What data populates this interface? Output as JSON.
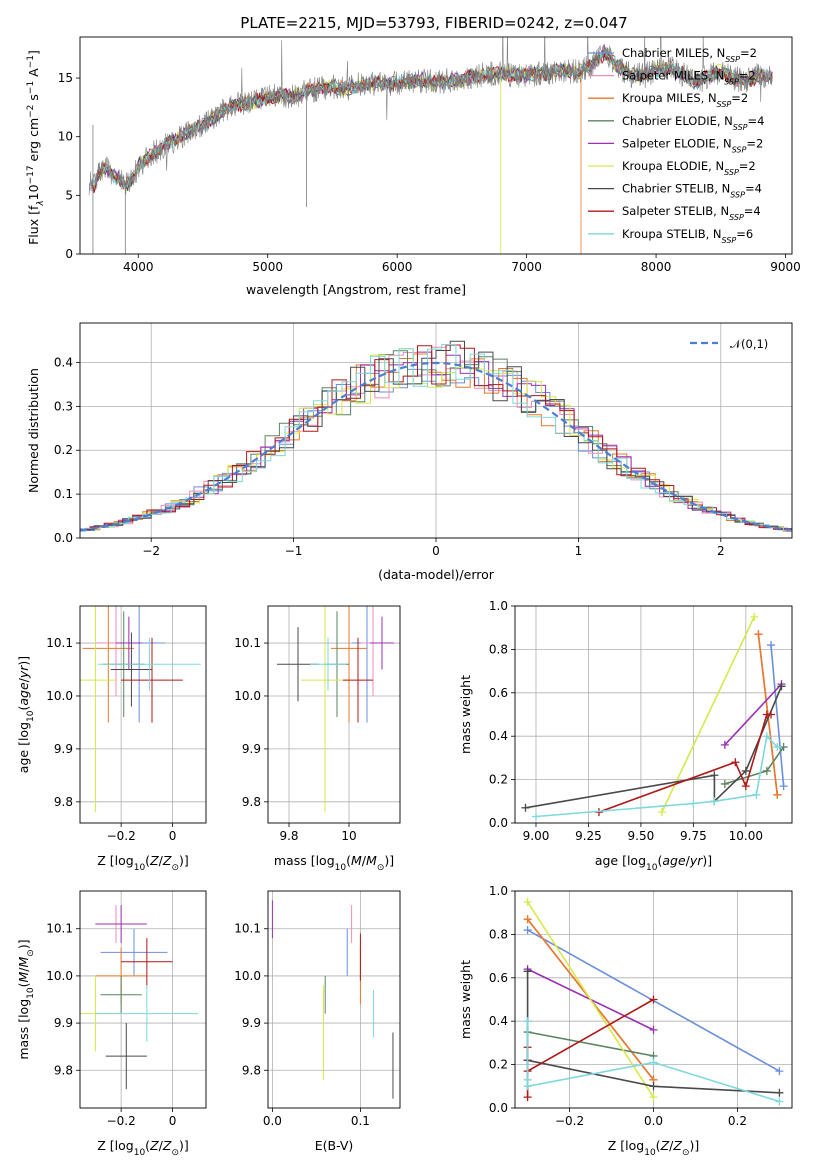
{
  "title": "PLATE=2215, MJD=53793, FIBERID=0242, z=0.047",
  "colors": {
    "Chabrier MILES": "#6a8fdd",
    "Salpeter MILES": "#f08cb8",
    "Kroupa MILES": "#e8782a",
    "Chabrier ELODIE": "#5a8560",
    "Salpeter ELODIE": "#9b30b0",
    "Kroupa ELODIE": "#d8e84a",
    "Chabrier STELIB": "#4a4a4a",
    "Salpeter STELIB": "#b01818",
    "Kroupa STELIB": "#7dd8dc",
    "data": "#7f7f7f",
    "normal": "#4a7fd4"
  },
  "chart_data": [
    {
      "type": "line",
      "name": "spectrum",
      "title": "PLATE=2215, MJD=53793, FIBERID=0242, z=0.047",
      "xlabel": "wavelength [Angstrom, rest frame]",
      "ylabel": "Flux [f",
      "ylabel_parts": [
        "Flux [f",
        "λ",
        "10",
        "−17",
        " erg cm",
        "−2",
        " s",
        "−1",
        " A",
        "−1",
        "]"
      ],
      "xlim": [
        3550,
        9050
      ],
      "ylim": [
        0,
        18.5
      ],
      "xticks": [
        4000,
        5000,
        6000,
        7000,
        8000,
        9000
      ],
      "yticks": [
        0,
        5,
        10,
        15
      ],
      "legend_position": "top-right",
      "legend": [
        {
          "name": "Chabrier MILES",
          "nssp": "2"
        },
        {
          "name": "Salpeter MILES",
          "nssp": "2"
        },
        {
          "name": "Kroupa MILES",
          "nssp": "2"
        },
        {
          "name": "Chabrier ELODIE",
          "nssp": "4"
        },
        {
          "name": "Salpeter ELODIE",
          "nssp": "2"
        },
        {
          "name": "Kroupa ELODIE",
          "nssp": "2"
        },
        {
          "name": "Chabrier STELIB",
          "nssp": "4"
        },
        {
          "name": "Salpeter STELIB",
          "nssp": "4"
        },
        {
          "name": "Kroupa STELIB",
          "nssp": "6"
        }
      ],
      "legend_nssp_prefix": "N",
      "legend_nssp_sub": "SSP",
      "spectrum_x": [
        3640,
        3660,
        3680,
        3700,
        3750,
        3800,
        3850,
        3900,
        3950,
        4000,
        4100,
        4200,
        4300,
        4400,
        4500,
        4600,
        4700,
        4800,
        4900,
        5000,
        5100,
        5200,
        5300,
        5400,
        5500,
        5600,
        5700,
        5800,
        5900,
        6000,
        6100,
        6200,
        6300,
        6400,
        6500,
        6600,
        6700,
        6800,
        6900,
        7000,
        7100,
        7200,
        7300,
        7400,
        7500,
        7600,
        7700,
        7800,
        7900,
        8000,
        8100,
        8200,
        8300,
        8400,
        8500,
        8600,
        8700,
        8800,
        8900
      ],
      "spectrum_y": [
        6.0,
        5.8,
        6.5,
        7.0,
        7.3,
        6.8,
        6.4,
        5.8,
        6.3,
        7.5,
        8.5,
        9.2,
        9.8,
        10.5,
        11.0,
        11.8,
        12.5,
        12.8,
        13.0,
        13.3,
        13.6,
        13.4,
        13.9,
        14.1,
        14.3,
        14.0,
        14.4,
        14.6,
        14.5,
        14.6,
        14.7,
        14.8,
        14.6,
        14.8,
        14.9,
        15.1,
        15.3,
        15.4,
        15.2,
        15.3,
        15.4,
        15.5,
        15.6,
        15.5,
        16.0,
        17.2,
        16.0,
        15.3,
        15.2,
        15.6,
        15.9,
        15.4,
        14.6,
        15.1,
        15.6,
        15.0,
        14.7,
        15.3,
        15.0
      ]
    },
    {
      "type": "histogram",
      "name": "residuals",
      "xlabel": "(data-model)/error",
      "ylabel": "Normed distribution",
      "xlim": [
        -2.5,
        2.5
      ],
      "ylim": [
        0,
        0.49
      ],
      "xticks": [
        -2,
        -1,
        0,
        1,
        2
      ],
      "yticks": [
        0.0,
        0.1,
        0.2,
        0.3,
        0.4
      ],
      "grid": true,
      "legend_position": "top-right",
      "legend_label": "𝒩(0,1)",
      "bin_width": 0.1
    },
    {
      "type": "scatter",
      "name": "age-vs-Z",
      "xlabel": "Z [log10(Z/Z⊙)]",
      "ylabel": "age [log10(age/yr)]",
      "xlim": [
        -0.36,
        0.13
      ],
      "ylim": [
        9.76,
        10.17
      ],
      "xticks": [
        -0.2,
        0.0
      ],
      "yticks": [
        9.8,
        9.9,
        10.0,
        10.1
      ],
      "grid": true,
      "points": [
        {
          "model": "Chabrier MILES",
          "x": -0.13,
          "y": 10.1,
          "xerr": 0.1,
          "yerr": 0.15
        },
        {
          "model": "Salpeter MILES",
          "x": -0.22,
          "y": 10.1,
          "xerr": 0.08,
          "yerr": 0.1
        },
        {
          "model": "Kroupa MILES",
          "x": -0.25,
          "y": 10.09,
          "xerr": 0.1,
          "yerr": 0.14
        },
        {
          "model": "Chabrier ELODIE",
          "x": -0.19,
          "y": 10.06,
          "xerr": 0.08,
          "yerr": 0.1
        },
        {
          "model": "Salpeter ELODIE",
          "x": -0.17,
          "y": 10.1,
          "xerr": 0.05,
          "yerr": 0.05
        },
        {
          "model": "Kroupa ELODIE",
          "x": -0.3,
          "y": 10.03,
          "xerr": 0.08,
          "yerr": 0.25
        },
        {
          "model": "Chabrier STELIB",
          "x": -0.16,
          "y": 10.05,
          "xerr": 0.08,
          "yerr": 0.07
        },
        {
          "model": "Salpeter STELIB",
          "x": -0.08,
          "y": 10.03,
          "xerr": 0.12,
          "yerr": 0.08
        },
        {
          "model": "Kroupa STELIB",
          "x": -0.09,
          "y": 10.06,
          "xerr": 0.2,
          "yerr": 0.05
        }
      ]
    },
    {
      "type": "scatter",
      "name": "age-vs-mass",
      "xlabel": "mass [log10(M/M⊙)]",
      "ylabel": "",
      "xlim": [
        9.73,
        10.17
      ],
      "ylim": [
        9.76,
        10.17
      ],
      "xticks": [
        9.8,
        10.0
      ],
      "yticks": [
        9.8,
        9.9,
        10.0,
        10.1
      ],
      "grid": true,
      "points": [
        {
          "model": "Chabrier MILES",
          "x": 10.06,
          "y": 10.1,
          "xerr": 0.05,
          "yerr": 0.15
        },
        {
          "model": "Salpeter MILES",
          "x": 10.08,
          "y": 10.1,
          "xerr": 0.04,
          "yerr": 0.1
        },
        {
          "model": "Kroupa MILES",
          "x": 10.0,
          "y": 10.09,
          "xerr": 0.06,
          "yerr": 0.14
        },
        {
          "model": "Chabrier ELODIE",
          "x": 9.96,
          "y": 10.06,
          "xerr": 0.04,
          "yerr": 0.1
        },
        {
          "model": "Salpeter ELODIE",
          "x": 10.11,
          "y": 10.1,
          "xerr": 0.04,
          "yerr": 0.05
        },
        {
          "model": "Kroupa ELODIE",
          "x": 9.92,
          "y": 10.03,
          "xerr": 0.08,
          "yerr": 0.25
        },
        {
          "model": "Chabrier STELIB",
          "x": 9.83,
          "y": 10.06,
          "xerr": 0.07,
          "yerr": 0.07
        },
        {
          "model": "Salpeter STELIB",
          "x": 10.03,
          "y": 10.03,
          "xerr": 0.05,
          "yerr": 0.08
        },
        {
          "model": "Kroupa STELIB",
          "x": 9.93,
          "y": 10.06,
          "xerr": 0.06,
          "yerr": 0.05
        }
      ]
    },
    {
      "type": "line",
      "name": "mass-weight-vs-age",
      "xlabel": "age [log10(age/yr)]",
      "ylabel": "mass weight",
      "xlim": [
        8.9,
        10.22
      ],
      "ylim": [
        0,
        1.0
      ],
      "xticks": [
        9.0,
        9.25,
        9.5,
        9.75,
        10.0
      ],
      "xticklabels": [
        "9.00",
        "9.25",
        "9.50",
        "9.75",
        "10.00"
      ],
      "yticks": [
        0.0,
        0.2,
        0.4,
        0.6,
        0.8,
        1.0
      ],
      "grid": true,
      "series": [
        {
          "model": "Chabrier MILES",
          "x": [
            10.12,
            10.18
          ],
          "y": [
            0.82,
            0.17
          ]
        },
        {
          "model": "Salpeter MILES",
          "x": [
            10.06,
            10.15
          ],
          "y": [
            0.87,
            0.13
          ]
        },
        {
          "model": "Kroupa MILES",
          "x": [
            10.06,
            10.15
          ],
          "y": [
            0.87,
            0.13
          ]
        },
        {
          "model": "Chabrier ELODIE",
          "x": [
            9.9,
            10.1,
            10.18
          ],
          "y": [
            0.18,
            0.24,
            0.35
          ]
        },
        {
          "model": "Salpeter ELODIE",
          "x": [
            9.9,
            10.17
          ],
          "y": [
            0.36,
            0.64
          ]
        },
        {
          "model": "Kroupa ELODIE",
          "x": [
            9.6,
            10.04
          ],
          "y": [
            0.05,
            0.95
          ]
        },
        {
          "model": "Chabrier STELIB",
          "x": [
            8.95,
            9.85,
            9.85,
            10.0,
            10.17
          ],
          "y": [
            0.07,
            0.22,
            0.1,
            0.24,
            0.63
          ]
        },
        {
          "model": "Salpeter STELIB",
          "x": [
            9.3,
            9.95,
            10.0,
            10.1,
            10.12
          ],
          "y": [
            0.05,
            0.28,
            0.17,
            0.5,
            0.5
          ]
        },
        {
          "model": "Kroupa STELIB",
          "x": [
            9.0,
            9.75,
            9.85,
            10.05,
            10.1,
            10.15
          ],
          "y": [
            0.03,
            0.09,
            0.1,
            0.13,
            0.4,
            0.35
          ]
        }
      ]
    },
    {
      "type": "scatter",
      "name": "mass-vs-Z",
      "xlabel": "Z [log10(Z/Z⊙)]",
      "ylabel": "mass [log10(M/M⊙)]",
      "xlim": [
        -0.36,
        0.13
      ],
      "ylim": [
        9.72,
        10.18
      ],
      "xticks": [
        -0.2,
        0.0
      ],
      "yticks": [
        9.8,
        9.9,
        10.0,
        10.1
      ],
      "grid": true,
      "points": [
        {
          "model": "Chabrier MILES",
          "x": -0.15,
          "y": 10.05,
          "xerr": 0.13,
          "yerr": 0.05
        },
        {
          "model": "Salpeter MILES",
          "x": -0.22,
          "y": 10.11,
          "xerr": 0.08,
          "yerr": 0.04
        },
        {
          "model": "Kroupa MILES",
          "x": -0.2,
          "y": 10.0,
          "xerr": 0.1,
          "yerr": 0.06
        },
        {
          "model": "Chabrier ELODIE",
          "x": -0.2,
          "y": 9.96,
          "xerr": 0.08,
          "yerr": 0.04
        },
        {
          "model": "Salpeter ELODIE",
          "x": -0.2,
          "y": 10.11,
          "xerr": 0.1,
          "yerr": 0.04
        },
        {
          "model": "Kroupa ELODIE",
          "x": -0.3,
          "y": 9.92,
          "xerr": 0.1,
          "yerr": 0.08
        },
        {
          "model": "Chabrier STELIB",
          "x": -0.18,
          "y": 9.83,
          "xerr": 0.08,
          "yerr": 0.07
        },
        {
          "model": "Salpeter STELIB",
          "x": -0.1,
          "y": 10.03,
          "xerr": 0.1,
          "yerr": 0.05
        },
        {
          "model": "Kroupa STELIB",
          "x": -0.1,
          "y": 9.92,
          "xerr": 0.2,
          "yerr": 0.06
        }
      ]
    },
    {
      "type": "scatter",
      "name": "mass-vs-ebv",
      "xlabel": "E(B-V)",
      "ylabel": "",
      "xlim": [
        -0.005,
        0.145
      ],
      "ylim": [
        9.72,
        10.18
      ],
      "xticks": [
        0.0,
        0.1
      ],
      "xticklabels": [
        "0.0",
        "0.1"
      ],
      "yticks": [
        9.8,
        9.9,
        10.0,
        10.1
      ],
      "grid": true,
      "points": [
        {
          "model": "Chabrier MILES",
          "x": 0.085,
          "y": 10.05,
          "yerr": 0.05
        },
        {
          "model": "Salpeter MILES",
          "x": 0.09,
          "y": 10.11,
          "yerr": 0.04
        },
        {
          "model": "Kroupa MILES",
          "x": 0.1,
          "y": 10.0,
          "yerr": 0.06
        },
        {
          "model": "Chabrier ELODIE",
          "x": 0.06,
          "y": 9.96,
          "yerr": 0.04
        },
        {
          "model": "Salpeter ELODIE",
          "x": 0.0,
          "y": 10.12,
          "yerr": 0.04
        },
        {
          "model": "Kroupa ELODIE",
          "x": 0.058,
          "y": 9.88,
          "yerr": 0.1
        },
        {
          "model": "Chabrier STELIB",
          "x": 0.137,
          "y": 9.81,
          "yerr": 0.07
        },
        {
          "model": "Salpeter STELIB",
          "x": 0.1,
          "y": 10.04,
          "yerr": 0.05
        },
        {
          "model": "Kroupa STELIB",
          "x": 0.115,
          "y": 9.92,
          "yerr": 0.05
        }
      ]
    },
    {
      "type": "line",
      "name": "mass-weight-vs-Z",
      "xlabel": "Z [log10(Z/Z⊙)]",
      "ylabel": "mass weight",
      "xlim": [
        -0.33,
        0.33
      ],
      "ylim": [
        0,
        1.0
      ],
      "xticks": [
        -0.2,
        0.0,
        0.2
      ],
      "xticklabels": [
        "−0.2",
        "0.0",
        "0.2"
      ],
      "yticks": [
        0.0,
        0.2,
        0.4,
        0.6,
        0.8,
        1.0
      ],
      "grid": true,
      "series": [
        {
          "model": "Chabrier MILES",
          "x": [
            -0.3,
            0.3
          ],
          "y": [
            0.82,
            0.17
          ]
        },
        {
          "model": "Salpeter MILES",
          "x": [
            -0.3,
            0.0
          ],
          "y": [
            0.87,
            0.13
          ]
        },
        {
          "model": "Kroupa MILES",
          "x": [
            -0.3,
            0.0
          ],
          "y": [
            0.87,
            0.13
          ]
        },
        {
          "model": "Chabrier ELODIE",
          "x": [
            -0.3,
            0.0
          ],
          "y": [
            0.35,
            0.24
          ]
        },
        {
          "model": "Salpeter ELODIE",
          "x": [
            -0.3,
            0.0
          ],
          "y": [
            0.64,
            0.36
          ]
        },
        {
          "model": "Kroupa ELODIE",
          "x": [
            -0.3,
            0.0
          ],
          "y": [
            0.95,
            0.05
          ]
        },
        {
          "model": "Chabrier STELIB",
          "x": [
            -0.3,
            -0.3,
            -0.3,
            0.0,
            0.3
          ],
          "y": [
            0.63,
            0.22,
            0.22,
            0.1,
            0.07
          ]
        },
        {
          "model": "Salpeter STELIB",
          "x": [
            -0.3,
            -0.3,
            -0.3,
            0.0
          ],
          "y": [
            0.05,
            0.28,
            0.17,
            0.5
          ]
        },
        {
          "model": "Kroupa STELIB",
          "x": [
            -0.3,
            -0.3,
            -0.3,
            0.0,
            0.3
          ],
          "y": [
            0.4,
            0.13,
            0.1,
            0.21,
            0.03
          ]
        }
      ]
    }
  ]
}
